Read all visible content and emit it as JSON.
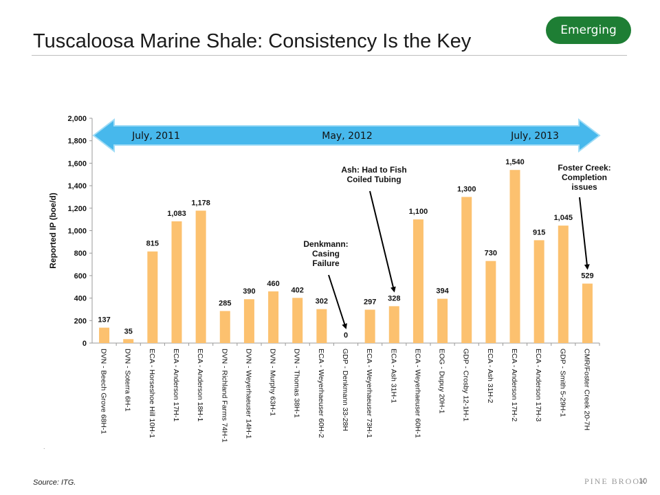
{
  "header": {
    "title": "Tuscaloosa Marine Shale: Consistency Is the Key",
    "badge": "Emerging"
  },
  "footer": {
    "source": "Source: ITG.",
    "brand": "PINE BROOK",
    "page_number": "10",
    "dot": "."
  },
  "colors": {
    "bar": "#fcc16f",
    "arrow": "#47b8ec",
    "badge": "#1e7e34"
  },
  "chart_data": {
    "type": "bar",
    "title": "",
    "xlabel": "",
    "ylabel": "Reported IP (boe/d)",
    "ylim": [
      0,
      2000
    ],
    "yticks": [
      0,
      200,
      400,
      600,
      800,
      1000,
      1200,
      1400,
      1600,
      1800,
      2000
    ],
    "ytick_labels": [
      "0",
      "200",
      "400",
      "600",
      "800",
      "1,000",
      "1,200",
      "1,400",
      "1,600",
      "1,800",
      "2,000"
    ],
    "categories": [
      "DVN - Beech Grove 68H-1",
      "DVN - Soterra 6H-1",
      "ECA - Horseshoe Hill 10H-1",
      "ECA - Anderson 17H-1",
      "ECA - Anderson 18H-1",
      "DVN - Richland Farms 74H-1",
      "DVN - Weyerhaeuser 14H-1",
      "DVN - Murphy 63H-1",
      "DVN - Thomas 38H-1",
      "ECA - Weyerhaeuser 60H-2",
      "GDP - Denkmann 33-28H",
      "ECA - Weyerhaeuser 73H-1",
      "ECA - Ash 31H-1",
      "ECA - Weyerhaeuser 60H-1",
      "EOG - Dupuy 20H-1",
      "GDP - Crosby 12-1H-1",
      "ECA - Ash 31H-2",
      "ECA - Anderson 17H-2",
      "ECA - Anderson 17H-3",
      "GDP - Smith 5-29H-1",
      "CMR/Foster Creek 20-7H"
    ],
    "values": [
      137,
      35,
      815,
      1083,
      1178,
      285,
      390,
      460,
      402,
      302,
      0,
      297,
      328,
      1100,
      394,
      1300,
      730,
      1540,
      915,
      1045,
      529
    ],
    "data_labels": [
      "137",
      "35",
      "815",
      "1,083",
      "1,178",
      "285",
      "390",
      "460",
      "402",
      "302",
      "0",
      "297",
      "328",
      "1,100",
      "394",
      "1,300",
      "730",
      "1,540",
      "915",
      "1,045",
      "529"
    ],
    "timeline_labels": [
      "July, 2011",
      "May, 2012",
      "July, 2013"
    ],
    "annotations": [
      {
        "lines": [
          "Denkmann:",
          "Casing",
          "Failure"
        ],
        "target_index": 10
      },
      {
        "lines": [
          "Ash: Had to Fish",
          "Coiled Tubing"
        ],
        "target_index": 12
      },
      {
        "lines": [
          "Foster Creek:",
          "Completion",
          "issues"
        ],
        "target_index": 20
      }
    ]
  }
}
